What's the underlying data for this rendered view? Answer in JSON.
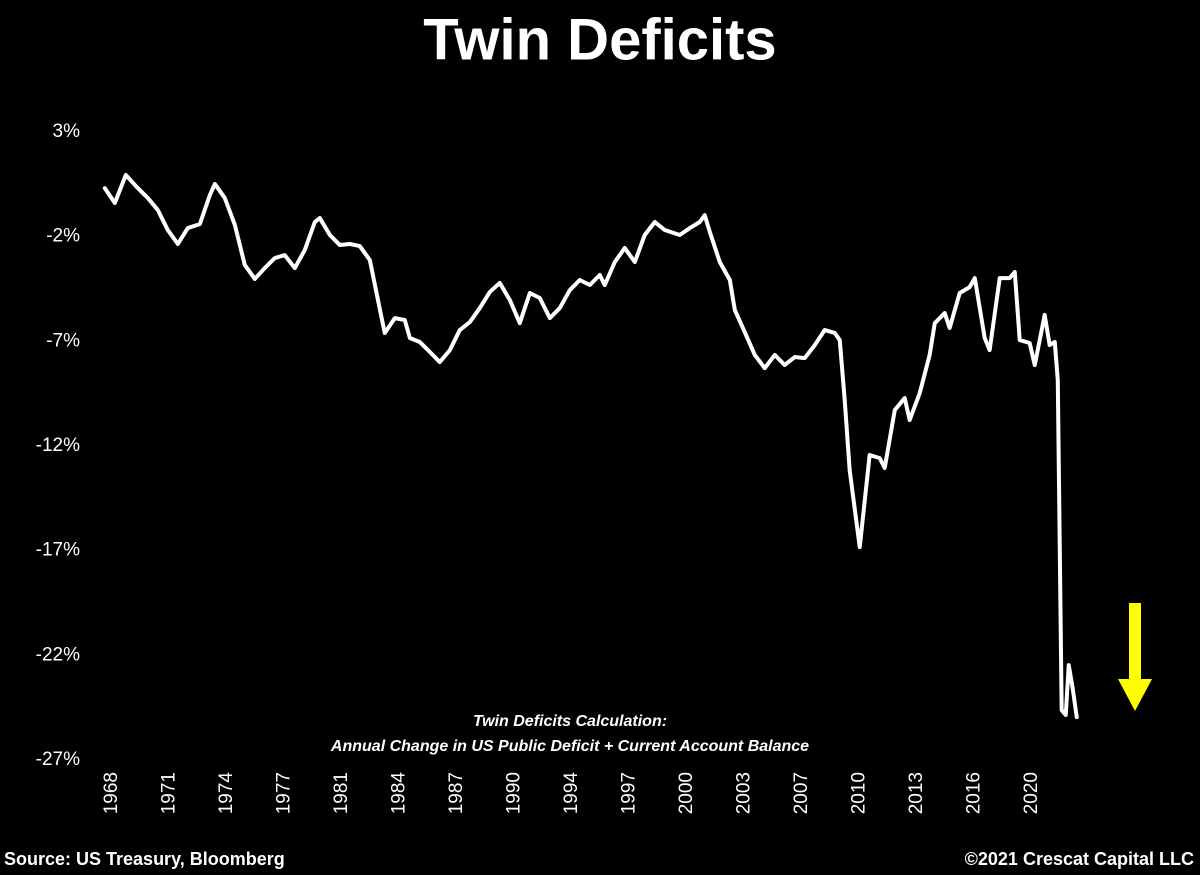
{
  "chart_data": {
    "type": "line",
    "title": "Twin Deficits",
    "annotations": [
      "Twin Deficits Calculation:",
      "Annual Change in US Public Deficit + Current Account Balance"
    ],
    "source": "Source: US Treasury, Bloomberg",
    "copyright": "©2021 Crescat Capital LLC",
    "grid": false,
    "xlim": [
      1967.5,
      2027
    ],
    "ylim": [
      -27,
      3
    ],
    "yticks": [
      {
        "value": 3,
        "label": "3%"
      },
      {
        "value": -2,
        "label": "-2%"
      },
      {
        "value": -7,
        "label": "-7%"
      },
      {
        "value": -12,
        "label": "-12%"
      },
      {
        "value": -17,
        "label": "-17%"
      },
      {
        "value": -22,
        "label": "-22%"
      },
      {
        "value": -27,
        "label": "-27%"
      }
    ],
    "xticks": [
      {
        "value": 1968,
        "label": "1968"
      },
      {
        "value": 1971.25,
        "label": "1971"
      },
      {
        "value": 1974.5,
        "label": "1974"
      },
      {
        "value": 1977.75,
        "label": "1977"
      },
      {
        "value": 1981,
        "label": "1981"
      },
      {
        "value": 1984.25,
        "label": "1984"
      },
      {
        "value": 1987.5,
        "label": "1987"
      },
      {
        "value": 1990.75,
        "label": "1990"
      },
      {
        "value": 1994,
        "label": "1994"
      },
      {
        "value": 1997.25,
        "label": "1997"
      },
      {
        "value": 2000.5,
        "label": "2000"
      },
      {
        "value": 2003.75,
        "label": "2003"
      },
      {
        "value": 2007,
        "label": "2007"
      },
      {
        "value": 2010.25,
        "label": "2010"
      },
      {
        "value": 2013.5,
        "label": "2013"
      },
      {
        "value": 2016.75,
        "label": "2016"
      },
      {
        "value": 2020,
        "label": "2020"
      }
    ],
    "color": "#ffffff",
    "x": [
      1967.6,
      1968.17,
      1968.79,
      1969.41,
      1970.03,
      1970.6,
      1971.16,
      1971.73,
      1972.29,
      1972.97,
      1973.54,
      1973.82,
      1974.38,
      1974.95,
      1975.51,
      1976.08,
      1976.64,
      1977.21,
      1977.77,
      1978.34,
      1978.9,
      1979.47,
      1979.75,
      1980.32,
      1980.88,
      1981.45,
      1982.01,
      1982.58,
      1983.15,
      1983.42,
      1983.99,
      1984.55,
      1984.84,
      1985.4,
      1985.97,
      1986.53,
      1987.1,
      1987.66,
      1988.23,
      1988.79,
      1989.36,
      1989.92,
      1990.49,
      1991.05,
      1991.62,
      1992.18,
      1992.75,
      1993.31,
      1993.88,
      1994.44,
      1995.01,
      1995.57,
      1995.85,
      1996.42,
      1996.98,
      1997.55,
      1998.11,
      1998.68,
      1999.24,
      2000.09,
      2000.66,
      2001.22,
      2001.5,
      2001.79,
      2002.35,
      2002.92,
      2003.2,
      2003.76,
      2004.33,
      2004.89,
      2005.46,
      2006.02,
      2006.59,
      2007.15,
      2007.72,
      2008.28,
      2008.85,
      2009.13,
      2009.41,
      2009.69,
      2010.26,
      2010.82,
      2011.39,
      2011.67,
      2012.24,
      2012.8,
      2013.08,
      2013.65,
      2014.21,
      2014.5,
      2015.06,
      2015.34,
      2015.91,
      2016.47,
      2016.76,
      2017.32,
      2017.6,
      2018.17,
      2018.73,
      2019.02,
      2019.3,
      2019.86,
      2020.15,
      2020.71,
      2020.99,
      2021.28,
      2021.45,
      2021.67,
      2021.9,
      2022.07,
      2022.29,
      2022.52
    ],
    "values": [
      0.32,
      -0.39,
      0.95,
      0.37,
      -0.15,
      -0.73,
      -1.68,
      -2.35,
      -1.59,
      -1.4,
      -0.01,
      0.52,
      -0.15,
      -1.44,
      -3.35,
      -4.02,
      -3.5,
      -3.02,
      -2.88,
      -3.5,
      -2.64,
      -1.3,
      -1.11,
      -1.92,
      -2.4,
      -2.35,
      -2.45,
      -3.12,
      -5.5,
      -6.6,
      -5.89,
      -5.98,
      -6.84,
      -7.03,
      -7.51,
      -7.99,
      -7.42,
      -6.46,
      -6.08,
      -5.41,
      -4.64,
      -4.21,
      -5.03,
      -6.13,
      -4.69,
      -4.93,
      -5.89,
      -5.41,
      -4.55,
      -4.07,
      -4.31,
      -3.83,
      -4.31,
      -3.21,
      -2.54,
      -3.21,
      -1.92,
      -1.3,
      -1.68,
      -1.92,
      -1.59,
      -1.3,
      -0.97,
      -1.78,
      -3.21,
      -4.07,
      -5.5,
      -6.56,
      -7.65,
      -8.28,
      -7.65,
      -8.13,
      -7.75,
      -7.8,
      -7.18,
      -6.46,
      -6.6,
      -6.94,
      -9.8,
      -13.15,
      -16.83,
      -12.43,
      -12.58,
      -13.05,
      -10.28,
      -9.71,
      -10.76,
      -9.47,
      -7.65,
      -6.13,
      -5.65,
      -6.36,
      -4.69,
      -4.41,
      -3.98,
      -6.84,
      -7.42,
      -3.98,
      -3.98,
      -3.69,
      -6.94,
      -7.08,
      -8.13,
      -5.74,
      -7.18,
      -7.03,
      -8.85,
      -24.62,
      -24.85,
      -22.47,
      -23.56,
      -24.95
    ]
  }
}
